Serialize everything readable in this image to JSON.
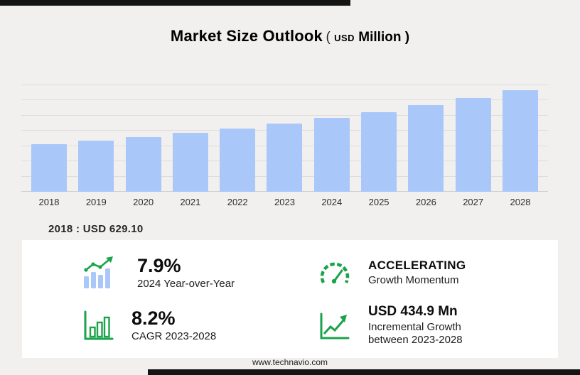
{
  "page": {
    "title_main": "Market Size Outlook",
    "title_unit_open": "( ",
    "title_unit_currency": "USD",
    "title_unit_rest": " Million )",
    "footer": "www.technavio.com"
  },
  "colors": {
    "bar_blue": "#a9c7f8",
    "accent_green": "#1aa34a",
    "band_black": "#141414"
  },
  "chart_data": {
    "type": "bar",
    "title": "Market Size Outlook (USD Million)",
    "categories": [
      "2018",
      "2019",
      "2020",
      "2021",
      "2022",
      "2023",
      "2024",
      "2025",
      "2026",
      "2027",
      "2028"
    ],
    "values": [
      629.1,
      674.4,
      723.3,
      776.2,
      833.4,
      899.8,
      970.9,
      1048.6,
      1134.6,
      1229.9,
      1334.7
    ],
    "xlabel": "",
    "ylabel": "",
    "ylim": [
      0,
      1400
    ],
    "grid_step": 200,
    "grid": true,
    "legend": false,
    "bar_color": "#a9c7f8",
    "annotation": "2018 : USD  629.10"
  },
  "stats": [
    {
      "id": "yoy",
      "icon": "bar-growth-icon",
      "value": "7.9%",
      "label": "2024 Year-over-Year"
    },
    {
      "id": "momentum",
      "icon": "speedometer-icon",
      "value": "ACCELERATING",
      "label": "Growth Momentum"
    },
    {
      "id": "cagr",
      "icon": "cagr-chart-icon",
      "value": "8.2%",
      "label": "CAGR 2023-2028"
    },
    {
      "id": "incremental",
      "icon": "growth-arrow-icon",
      "value": "USD 434.9 Mn",
      "label": "Incremental Growth between 2023-2028"
    }
  ]
}
